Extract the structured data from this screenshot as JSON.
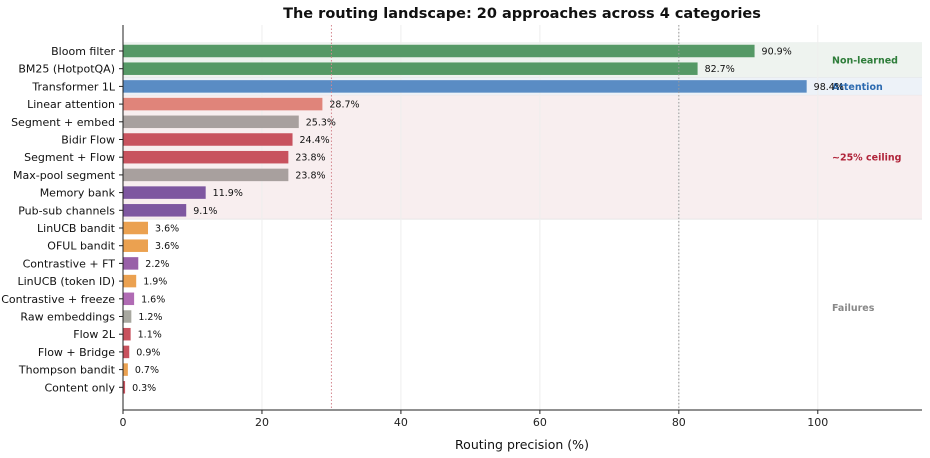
{
  "chart_data": {
    "type": "bar",
    "orientation": "horizontal",
    "title": "The routing landscape: 20 approaches across 4 categories",
    "xlabel": "Routing precision (%)",
    "ylabel": "",
    "xlim": [
      0,
      115
    ],
    "xticks": [
      0,
      20,
      40,
      60,
      80,
      100
    ],
    "grid": "vertical",
    "reference_lines": [
      30,
      80
    ],
    "categories": [
      "Bloom filter",
      "BM25 (HotpotQA)",
      "Transformer 1L",
      "Linear attention",
      "Segment + embed",
      "Bidir Flow",
      "Segment + Flow",
      "Max-pool segment",
      "Memory bank",
      "Pub-sub channels",
      "LinUCB bandit",
      "OFUL bandit",
      "Contrastive + FT",
      "LinUCB (token ID)",
      "Contrastive + freeze",
      "Raw embeddings",
      "Flow 2L",
      "Flow + Bridge",
      "Thompson bandit",
      "Content only"
    ],
    "values": [
      90.9,
      82.7,
      98.4,
      28.7,
      25.3,
      24.4,
      23.8,
      23.8,
      11.9,
      9.1,
      3.6,
      3.6,
      2.2,
      1.9,
      1.6,
      1.2,
      1.1,
      0.9,
      0.7,
      0.3
    ],
    "value_labels": [
      "90.9%",
      "82.7%",
      "98.4%",
      "28.7%",
      "25.3%",
      "24.4%",
      "23.8%",
      "23.8%",
      "11.9%",
      "9.1%",
      "3.6%",
      "3.6%",
      "2.2%",
      "1.9%",
      "1.6%",
      "1.2%",
      "1.1%",
      "0.9%",
      "0.7%",
      "0.3%"
    ],
    "colors": [
      "#559966",
      "#559966",
      "#5a8cc4",
      "#e0847a",
      "#a8a09e",
      "#c8525e",
      "#c8525e",
      "#a8a09e",
      "#7e57a0",
      "#7e57a0",
      "#eba150",
      "#eba150",
      "#9960a8",
      "#eba150",
      "#b06bb4",
      "#a8a8a0",
      "#c8525e",
      "#c8525e",
      "#eba150",
      "#c8525e"
    ],
    "bands": [
      {
        "label": "Non-learned",
        "from": 0,
        "to": 1,
        "fill": "#eef3ef",
        "color": "#2e7d3a"
      },
      {
        "label": "Attention",
        "from": 2,
        "to": 2,
        "fill": "#edf2f8",
        "color": "#2c6ab0"
      },
      {
        "label": "~25% ceiling",
        "from": 3,
        "to": 9,
        "fill": "#f8eeef",
        "color": "#b0243a"
      },
      {
        "label": "Failures",
        "from": 10,
        "to": 19,
        "fill": "none",
        "color": "#888888"
      }
    ]
  }
}
